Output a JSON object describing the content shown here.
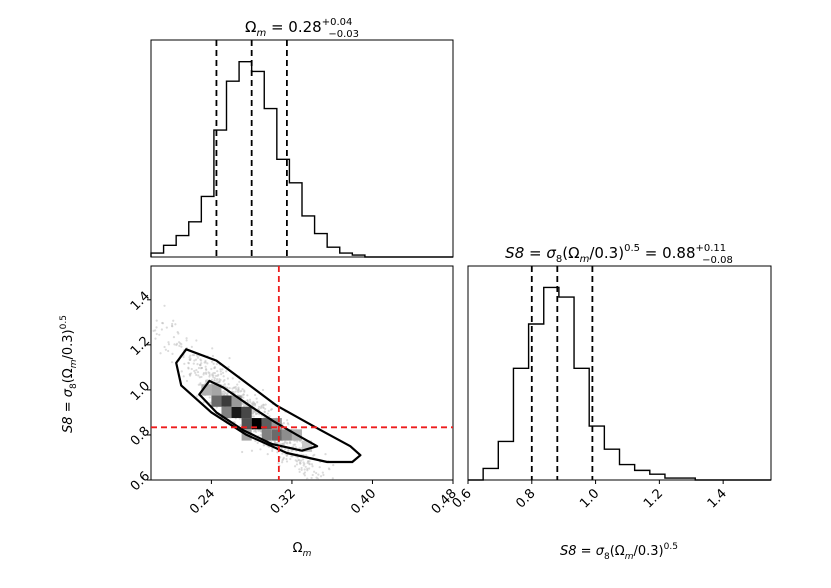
{
  "chart_data": [
    {
      "panel": "omega_m_marginal",
      "type": "histogram",
      "title_main": "Ω",
      "title_sub": "m",
      "title_value": " = 0.28",
      "title_err_plus": "+0.04",
      "title_err_minus": "−0.03",
      "xlim": [
        0.18,
        0.48
      ],
      "bins_start": 0.18,
      "bin_width": 0.0125,
      "values": [
        0.02,
        0.06,
        0.11,
        0.18,
        0.31,
        0.65,
        0.9,
        1.0,
        0.95,
        0.76,
        0.5,
        0.38,
        0.21,
        0.12,
        0.05,
        0.02,
        0.01,
        0.0,
        0.0,
        0.0,
        0.0,
        0.0,
        0.0,
        0.0
      ],
      "quantiles": [
        0.245,
        0.28,
        0.315
      ]
    },
    {
      "panel": "s8_marginal",
      "type": "histogram",
      "title_main": "S8 = σ",
      "title_sub": "8",
      "title_mid": "(Ω",
      "title_sub2": "m",
      "title_tail": "/0.3)",
      "title_sup": "0.5",
      "title_value": " = 0.88",
      "title_err_plus": "+0.11",
      "title_err_minus": "−0.08",
      "xlim": [
        0.6,
        1.55
      ],
      "bins_start": 0.6,
      "bin_width": 0.0475,
      "values": [
        0.0,
        0.06,
        0.2,
        0.58,
        0.81,
        1.0,
        0.95,
        0.58,
        0.28,
        0.16,
        0.08,
        0.05,
        0.03,
        0.01,
        0.01,
        0.0,
        0.0,
        0.0,
        0.0,
        0.0
      ],
      "quantiles": [
        0.8,
        0.88,
        0.99
      ],
      "xticks": [
        "0.6",
        "0.8",
        "1.0",
        "1.2",
        "1.4"
      ],
      "xtick_values": [
        0.6,
        0.8,
        1.0,
        1.2,
        1.4
      ],
      "xlabel_main": "S8 = σ",
      "xlabel_sub": "8",
      "xlabel_mid": "(Ω",
      "xlabel_sub2": "m",
      "xlabel_tail": "/0.3)",
      "xlabel_sup": "0.5"
    },
    {
      "panel": "joint",
      "type": "2d-histogram-contour",
      "xlim": [
        0.18,
        0.48
      ],
      "ylim": [
        0.6,
        1.55
      ],
      "xticks": [
        "0.24",
        "0.32",
        "0.40",
        "0.48"
      ],
      "xtick_values": [
        0.24,
        0.32,
        0.4,
        0.48
      ],
      "yticks": [
        "0.6",
        "0.8",
        "1.0",
        "1.2",
        "1.4"
      ],
      "ytick_values": [
        0.6,
        0.8,
        1.0,
        1.2,
        1.4
      ],
      "xlabel_main": "Ω",
      "xlabel_sub": "m",
      "ylabel_main": "S8 = σ",
      "ylabel_sub": "8",
      "ylabel_mid": "(Ω",
      "ylabel_sub2": "m",
      "ylabel_tail": "/0.3)",
      "ylabel_sup": "0.5",
      "truth": {
        "x": 0.307,
        "y": 0.834
      },
      "truth_color": "#ee1c1c",
      "density_cells": [
        {
          "x": 0.245,
          "y": 0.95,
          "d": 0.55
        },
        {
          "x": 0.255,
          "y": 0.95,
          "d": 0.75
        },
        {
          "x": 0.255,
          "y": 0.9,
          "d": 0.45
        },
        {
          "x": 0.265,
          "y": 0.9,
          "d": 0.9
        },
        {
          "x": 0.275,
          "y": 0.9,
          "d": 0.7
        },
        {
          "x": 0.275,
          "y": 0.85,
          "d": 0.65
        },
        {
          "x": 0.285,
          "y": 0.85,
          "d": 1.0
        },
        {
          "x": 0.295,
          "y": 0.85,
          "d": 0.6
        },
        {
          "x": 0.305,
          "y": 0.8,
          "d": 0.55
        },
        {
          "x": 0.315,
          "y": 0.8,
          "d": 0.4
        },
        {
          "x": 0.235,
          "y": 1.0,
          "d": 0.25
        },
        {
          "x": 0.245,
          "y": 1.0,
          "d": 0.3
        },
        {
          "x": 0.265,
          "y": 0.95,
          "d": 0.35
        },
        {
          "x": 0.275,
          "y": 0.8,
          "d": 0.3
        },
        {
          "x": 0.295,
          "y": 0.8,
          "d": 0.45
        },
        {
          "x": 0.305,
          "y": 0.85,
          "d": 0.35
        },
        {
          "x": 0.325,
          "y": 0.8,
          "d": 0.25
        },
        {
          "x": 0.335,
          "y": 0.75,
          "d": 0.15
        }
      ],
      "contour_inner": [
        [
          0.228,
          0.98
        ],
        [
          0.238,
          1.04
        ],
        [
          0.252,
          1.01
        ],
        [
          0.278,
          0.93
        ],
        [
          0.302,
          0.86
        ],
        [
          0.325,
          0.8
        ],
        [
          0.345,
          0.75
        ],
        [
          0.33,
          0.73
        ],
        [
          0.3,
          0.76
        ],
        [
          0.272,
          0.82
        ],
        [
          0.245,
          0.9
        ],
        [
          0.228,
          0.98
        ]
      ],
      "contour_outer": [
        [
          0.205,
          1.12
        ],
        [
          0.215,
          1.18
        ],
        [
          0.245,
          1.13
        ],
        [
          0.275,
          1.03
        ],
        [
          0.305,
          0.93
        ],
        [
          0.345,
          0.83
        ],
        [
          0.378,
          0.75
        ],
        [
          0.388,
          0.71
        ],
        [
          0.38,
          0.68
        ],
        [
          0.355,
          0.68
        ],
        [
          0.315,
          0.72
        ],
        [
          0.275,
          0.8
        ],
        [
          0.24,
          0.9
        ],
        [
          0.21,
          1.02
        ],
        [
          0.205,
          1.12
        ]
      ]
    }
  ]
}
